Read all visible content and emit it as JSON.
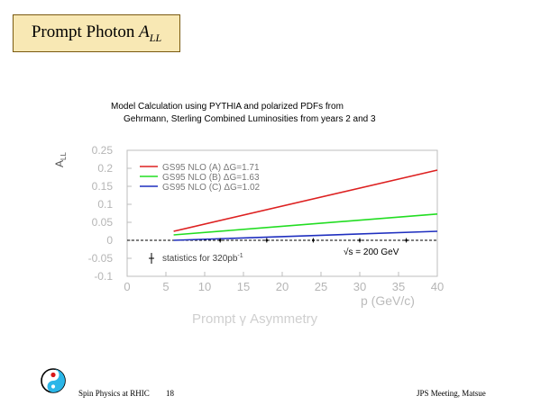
{
  "slide": {
    "title_main": "Prompt Photon",
    "title_var": "A",
    "title_sub": "LL",
    "footer_left": "Spin Physics at RHIC",
    "footer_page": "18",
    "footer_right": "JPS Meeting, Matsue"
  },
  "chart_data": {
    "type": "line",
    "title_line1": "Model Calculation using PYTHIA and polarized PDFs from",
    "title_line2": "Gehrmann, Sterling   Combined Luminosities from years 2 and 3",
    "xlabel": "p  (GeV/c)",
    "ylabel": "A",
    "ylabel_sub": "LL",
    "bottom_label": "Prompt γ Asymmetry",
    "xlim": [
      0,
      40
    ],
    "ylim": [
      -0.1,
      0.25
    ],
    "x_ticks": [
      0,
      5,
      10,
      15,
      20,
      25,
      30,
      35,
      40
    ],
    "x_tick_labels": [
      "0",
      "5",
      "10",
      "15",
      "20",
      "25",
      "30",
      "35",
      "40"
    ],
    "y_ticks": [
      -0.1,
      -0.05,
      0,
      0.05,
      0.1,
      0.15,
      0.2,
      0.25
    ],
    "y_tick_labels": [
      "-0.1",
      "-0.05",
      "0",
      "0.05",
      "0.1",
      "0.15",
      "0.2",
      "0.25"
    ],
    "legend_position": "top-left",
    "series": [
      {
        "name": "GS95 NLO (A) ΔG=1.71",
        "color": "#dd2020",
        "x": [
          6,
          40
        ],
        "y": [
          0.025,
          0.195
        ]
      },
      {
        "name": "GS95 NLO (B) ΔG=1.63",
        "color": "#22dd22",
        "x": [
          6,
          40
        ],
        "y": [
          0.015,
          0.073
        ]
      },
      {
        "name": "GS95 NLO (C) ΔG=1.02",
        "color": "#1f2fbf",
        "x": [
          6,
          40
        ],
        "y": [
          0.0,
          0.025
        ]
      }
    ],
    "data_points": {
      "x": [
        12,
        18,
        24,
        30,
        36
      ],
      "y": [
        0.0,
        0.0,
        0.0,
        0.0,
        0.0
      ],
      "color": "#0a0a0a"
    },
    "annotation_energy": "√s = 200 GeV",
    "annotation_stats": "statistics for 320pb",
    "annotation_stats_sup": "-1"
  }
}
